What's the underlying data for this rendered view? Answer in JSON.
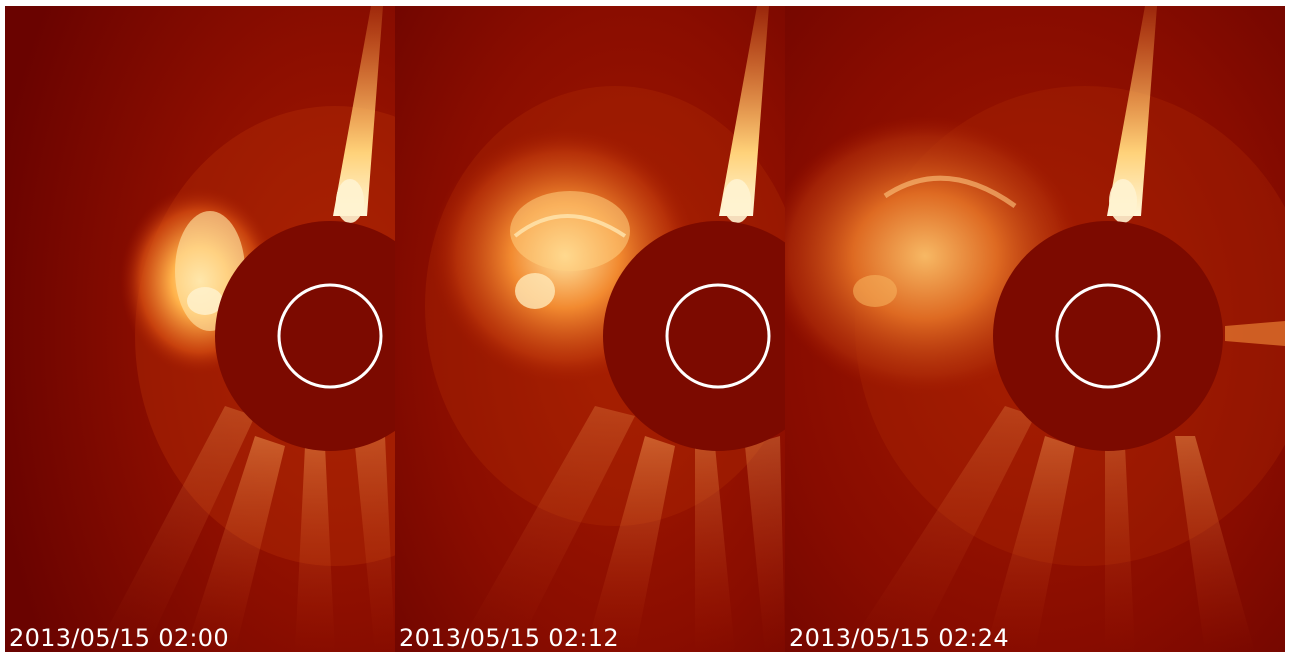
{
  "frames": [
    {
      "timestamp": "2013/05/15 02:00"
    },
    {
      "timestamp": "2013/05/15 02:12"
    },
    {
      "timestamp": "2013/05/15 02:24"
    }
  ],
  "colors": {
    "background": "#7a0500",
    "occulter": "#7a0a00",
    "ejecta": "#ff9a2e",
    "bright": "#fff1c8",
    "sun_circle": "#ffffff",
    "text": "#ffffff"
  }
}
